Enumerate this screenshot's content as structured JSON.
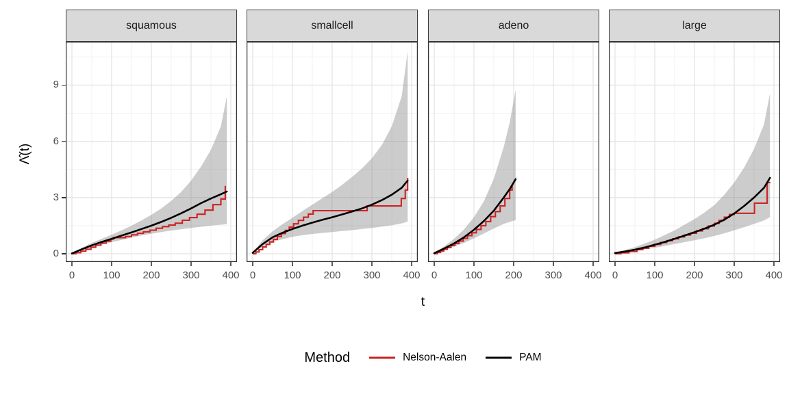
{
  "figure": {
    "legend": {
      "title": "Method",
      "items": [
        {
          "label": "Nelson-Aalen",
          "color": "#CC2222"
        },
        {
          "label": "PAM",
          "color": "#000000"
        }
      ]
    }
  },
  "colors": {
    "nelson_aalen": "#CC2222",
    "pam": "#000000",
    "ribbon_fill": "#808080",
    "ribbon_opacity": 0.4,
    "strip_background": "#D9D9D9",
    "panel_border": "#333333",
    "grid_major": "#E4E4E4",
    "grid_minor": "#F1F1F1",
    "axis_text": "#4D4D4D"
  },
  "chart_data": {
    "type": "line",
    "title": "",
    "xlabel": "t",
    "ylabel": "Λ̂(t)",
    "legend_position": "bottom",
    "grid": "major+minor",
    "xlim": [
      -16,
      414
    ],
    "ylim": [
      -0.45,
      11.3
    ],
    "x_ticks": [
      0,
      100,
      200,
      300,
      400
    ],
    "x_tick_labels": [
      "0",
      "100",
      "200",
      "300",
      "400"
    ],
    "x_minor_ticks": [
      50,
      150,
      250,
      350
    ],
    "y_ticks": [
      0,
      3,
      6,
      9
    ],
    "y_tick_labels": [
      "0",
      "3",
      "6",
      "9"
    ],
    "y_minor_ticks": [
      1.5,
      4.5,
      7.5,
      10.5
    ],
    "facets": [
      {
        "name": "squamous",
        "ribbon": {
          "t": [
            0,
            25,
            50,
            75,
            100,
            125,
            150,
            175,
            200,
            225,
            250,
            275,
            300,
            325,
            350,
            375,
            390
          ],
          "upper": [
            0.04,
            0.33,
            0.58,
            0.8,
            1.02,
            1.25,
            1.5,
            1.78,
            2.08,
            2.42,
            2.82,
            3.3,
            3.9,
            4.65,
            5.55,
            6.8,
            8.4
          ],
          "lower": [
            0.01,
            0.17,
            0.34,
            0.48,
            0.62,
            0.74,
            0.86,
            0.97,
            1.07,
            1.16,
            1.24,
            1.31,
            1.38,
            1.44,
            1.5,
            1.55,
            1.58
          ]
        },
        "pam": {
          "t": [
            0,
            25,
            50,
            75,
            100,
            125,
            150,
            175,
            200,
            225,
            250,
            275,
            300,
            325,
            350,
            375,
            390
          ],
          "v": [
            0.02,
            0.24,
            0.45,
            0.63,
            0.8,
            0.97,
            1.14,
            1.32,
            1.5,
            1.7,
            1.92,
            2.16,
            2.42,
            2.7,
            2.95,
            3.18,
            3.32
          ]
        },
        "nelson_aalen": {
          "t": [
            0,
            10,
            22,
            35,
            48,
            60,
            73,
            86,
            98,
            105,
            135,
            150,
            165,
            180,
            196,
            212,
            228,
            244,
            260,
            278,
            296,
            315,
            335,
            355,
            375,
            386
          ],
          "v": [
            0,
            0.06,
            0.14,
            0.24,
            0.35,
            0.46,
            0.57,
            0.67,
            0.78,
            0.86,
            0.92,
            1.01,
            1.09,
            1.17,
            1.26,
            1.36,
            1.45,
            1.53,
            1.63,
            1.79,
            1.93,
            2.11,
            2.33,
            2.62,
            2.92,
            3.62
          ]
        }
      },
      {
        "name": "smallcell",
        "ribbon": {
          "t": [
            0,
            25,
            50,
            75,
            100,
            125,
            150,
            175,
            200,
            225,
            250,
            275,
            300,
            325,
            350,
            375,
            390
          ],
          "upper": [
            0.08,
            0.72,
            1.2,
            1.58,
            1.92,
            2.28,
            2.62,
            2.96,
            3.3,
            3.68,
            4.1,
            4.55,
            5.1,
            5.8,
            6.8,
            8.4,
            10.8
          ],
          "lower": [
            0.03,
            0.38,
            0.62,
            0.78,
            0.9,
            0.99,
            1.06,
            1.11,
            1.16,
            1.21,
            1.26,
            1.32,
            1.38,
            1.45,
            1.52,
            1.62,
            1.72
          ]
        },
        "pam": {
          "t": [
            0,
            25,
            50,
            75,
            100,
            125,
            150,
            175,
            200,
            225,
            250,
            275,
            300,
            325,
            350,
            375,
            390
          ],
          "v": [
            0.05,
            0.52,
            0.88,
            1.12,
            1.32,
            1.5,
            1.66,
            1.81,
            1.95,
            2.1,
            2.25,
            2.42,
            2.62,
            2.86,
            3.15,
            3.52,
            3.9
          ]
        },
        "nelson_aalen": {
          "t": [
            0,
            8,
            16,
            25,
            34,
            43,
            52,
            62,
            72,
            82,
            92,
            103,
            115,
            128,
            140,
            152,
            288,
            374,
            384,
            390
          ],
          "v": [
            0,
            0.1,
            0.22,
            0.36,
            0.5,
            0.63,
            0.77,
            0.92,
            1.08,
            1.25,
            1.42,
            1.6,
            1.78,
            1.95,
            2.12,
            2.3,
            2.55,
            2.95,
            3.4,
            4.05
          ]
        }
      },
      {
        "name": "adeno",
        "ribbon": {
          "t": [
            0,
            25,
            50,
            75,
            100,
            125,
            150,
            175,
            190,
            205
          ],
          "upper": [
            0.05,
            0.4,
            0.8,
            1.3,
            1.95,
            2.8,
            4.0,
            5.7,
            7.0,
            8.75
          ],
          "lower": [
            0.02,
            0.2,
            0.38,
            0.58,
            0.82,
            1.08,
            1.35,
            1.6,
            1.7,
            1.8
          ]
        },
        "pam": {
          "t": [
            0,
            25,
            50,
            75,
            100,
            125,
            150,
            175,
            190,
            205
          ],
          "v": [
            0.03,
            0.28,
            0.55,
            0.88,
            1.28,
            1.75,
            2.3,
            3.0,
            3.45,
            3.98
          ]
        },
        "nelson_aalen": {
          "t": [
            0,
            8,
            16,
            24,
            33,
            42,
            52,
            62,
            73,
            84,
            95,
            106,
            118,
            130,
            142,
            154,
            166,
            178,
            190,
            196
          ],
          "v": [
            0,
            0.07,
            0.15,
            0.24,
            0.33,
            0.44,
            0.55,
            0.68,
            0.82,
            0.97,
            1.12,
            1.3,
            1.5,
            1.72,
            1.98,
            2.25,
            2.55,
            2.95,
            3.4,
            3.7
          ]
        }
      },
      {
        "name": "large",
        "ribbon": {
          "t": [
            0,
            25,
            50,
            75,
            100,
            125,
            150,
            175,
            200,
            225,
            250,
            275,
            300,
            325,
            350,
            375,
            390
          ],
          "upper": [
            0.07,
            0.2,
            0.35,
            0.55,
            0.75,
            1.0,
            1.25,
            1.55,
            1.85,
            2.2,
            2.6,
            3.15,
            3.8,
            4.6,
            5.6,
            6.9,
            8.55
          ],
          "lower": [
            0.02,
            0.08,
            0.14,
            0.23,
            0.32,
            0.42,
            0.52,
            0.62,
            0.72,
            0.83,
            0.95,
            1.09,
            1.25,
            1.42,
            1.6,
            1.78,
            1.95
          ]
        },
        "pam": {
          "t": [
            0,
            25,
            50,
            75,
            100,
            125,
            150,
            175,
            200,
            225,
            250,
            275,
            300,
            325,
            350,
            375,
            390
          ],
          "v": [
            0.04,
            0.12,
            0.22,
            0.34,
            0.48,
            0.63,
            0.8,
            0.97,
            1.15,
            1.34,
            1.55,
            1.82,
            2.15,
            2.55,
            3.0,
            3.52,
            4.05
          ]
        },
        "nelson_aalen": {
          "t": [
            0,
            15,
            35,
            55,
            70,
            85,
            100,
            115,
            130,
            145,
            160,
            175,
            190,
            205,
            220,
            235,
            250,
            262,
            275,
            288,
            300,
            351,
            383,
            391
          ],
          "v": [
            0,
            0.05,
            0.12,
            0.22,
            0.3,
            0.4,
            0.5,
            0.6,
            0.7,
            0.8,
            0.9,
            1.0,
            1.1,
            1.22,
            1.34,
            1.48,
            1.62,
            1.78,
            1.95,
            2.1,
            2.16,
            2.7,
            3.8,
            3.8
          ]
        }
      }
    ]
  }
}
